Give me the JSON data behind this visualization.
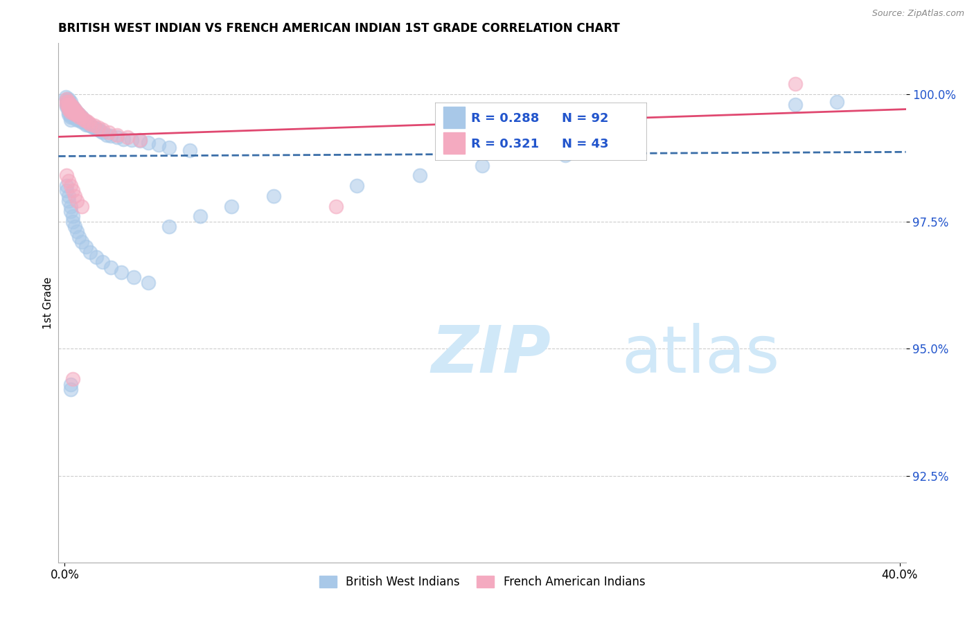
{
  "title": "BRITISH WEST INDIAN VS FRENCH AMERICAN INDIAN 1ST GRADE CORRELATION CHART",
  "source": "Source: ZipAtlas.com",
  "ylabel": "1st Grade",
  "xlim": [
    -0.003,
    0.403
  ],
  "ylim": [
    0.908,
    1.01
  ],
  "x_ticks": [
    0.0,
    0.4
  ],
  "x_tick_labels": [
    "0.0%",
    "40.0%"
  ],
  "y_ticks": [
    0.925,
    0.95,
    0.975,
    1.0
  ],
  "y_tick_labels": [
    "92.5%",
    "95.0%",
    "97.5%",
    "100.0%"
  ],
  "blue_color": "#a8c8e8",
  "pink_color": "#f4aac0",
  "blue_line_color": "#3a6ea8",
  "pink_line_color": "#e04870",
  "R_blue": 0.288,
  "N_blue": 92,
  "R_pink": 0.321,
  "N_pink": 43,
  "blue_x": [
    0.0005,
    0.001,
    0.001,
    0.001,
    0.001,
    0.002,
    0.002,
    0.002,
    0.002,
    0.002,
    0.002,
    0.002,
    0.003,
    0.003,
    0.003,
    0.003,
    0.003,
    0.003,
    0.003,
    0.004,
    0.004,
    0.004,
    0.004,
    0.004,
    0.005,
    0.005,
    0.005,
    0.005,
    0.006,
    0.006,
    0.006,
    0.006,
    0.007,
    0.007,
    0.007,
    0.008,
    0.008,
    0.008,
    0.009,
    0.009,
    0.01,
    0.01,
    0.011,
    0.012,
    0.013,
    0.014,
    0.015,
    0.016,
    0.017,
    0.018,
    0.02,
    0.022,
    0.025,
    0.028,
    0.032,
    0.036,
    0.04,
    0.045,
    0.05,
    0.06,
    0.001,
    0.001,
    0.002,
    0.002,
    0.003,
    0.003,
    0.004,
    0.004,
    0.005,
    0.006,
    0.007,
    0.008,
    0.01,
    0.012,
    0.015,
    0.018,
    0.022,
    0.027,
    0.033,
    0.04,
    0.05,
    0.065,
    0.08,
    0.1,
    0.14,
    0.17,
    0.2,
    0.24,
    0.35,
    0.37,
    0.003,
    0.003
  ],
  "blue_y": [
    0.9995,
    0.999,
    0.9985,
    0.998,
    0.9975,
    0.999,
    0.9985,
    0.998,
    0.9975,
    0.997,
    0.9965,
    0.996,
    0.9985,
    0.9975,
    0.997,
    0.9965,
    0.996,
    0.9955,
    0.995,
    0.9975,
    0.997,
    0.9965,
    0.996,
    0.9955,
    0.997,
    0.9965,
    0.996,
    0.9955,
    0.9965,
    0.996,
    0.9955,
    0.995,
    0.996,
    0.9955,
    0.995,
    0.9955,
    0.995,
    0.9945,
    0.995,
    0.9945,
    0.9945,
    0.994,
    0.994,
    0.9938,
    0.9936,
    0.9934,
    0.9932,
    0.993,
    0.9928,
    0.9925,
    0.992,
    0.9918,
    0.9915,
    0.9912,
    0.991,
    0.9908,
    0.9905,
    0.99,
    0.9895,
    0.989,
    0.982,
    0.981,
    0.98,
    0.979,
    0.978,
    0.977,
    0.976,
    0.975,
    0.974,
    0.973,
    0.972,
    0.971,
    0.97,
    0.969,
    0.968,
    0.967,
    0.966,
    0.965,
    0.964,
    0.963,
    0.974,
    0.976,
    0.978,
    0.98,
    0.982,
    0.984,
    0.986,
    0.988,
    0.998,
    0.9985,
    0.943,
    0.942
  ],
  "pink_x": [
    0.001,
    0.001,
    0.001,
    0.002,
    0.002,
    0.002,
    0.002,
    0.003,
    0.003,
    0.003,
    0.003,
    0.004,
    0.004,
    0.004,
    0.005,
    0.005,
    0.005,
    0.006,
    0.006,
    0.007,
    0.007,
    0.008,
    0.009,
    0.01,
    0.011,
    0.012,
    0.014,
    0.016,
    0.018,
    0.021,
    0.025,
    0.03,
    0.036,
    0.001,
    0.002,
    0.003,
    0.004,
    0.005,
    0.006,
    0.008,
    0.13,
    0.35,
    0.004
  ],
  "pink_y": [
    0.999,
    0.9985,
    0.998,
    0.9985,
    0.998,
    0.9975,
    0.997,
    0.998,
    0.9975,
    0.997,
    0.9965,
    0.9975,
    0.997,
    0.9965,
    0.997,
    0.9965,
    0.996,
    0.9965,
    0.996,
    0.996,
    0.9955,
    0.9955,
    0.995,
    0.9948,
    0.9945,
    0.9942,
    0.9938,
    0.9935,
    0.993,
    0.9925,
    0.992,
    0.9915,
    0.991,
    0.984,
    0.983,
    0.982,
    0.981,
    0.98,
    0.979,
    0.978,
    0.978,
    1.002,
    0.944
  ],
  "watermark_zip": "ZIP",
  "watermark_atlas": "atlas",
  "watermark_color": "#d0e8f8",
  "legend_R_color": "#2255cc",
  "legend_N_color": "#2255cc",
  "background_color": "#ffffff",
  "grid_color": "#cccccc",
  "ytick_color": "#2255cc"
}
